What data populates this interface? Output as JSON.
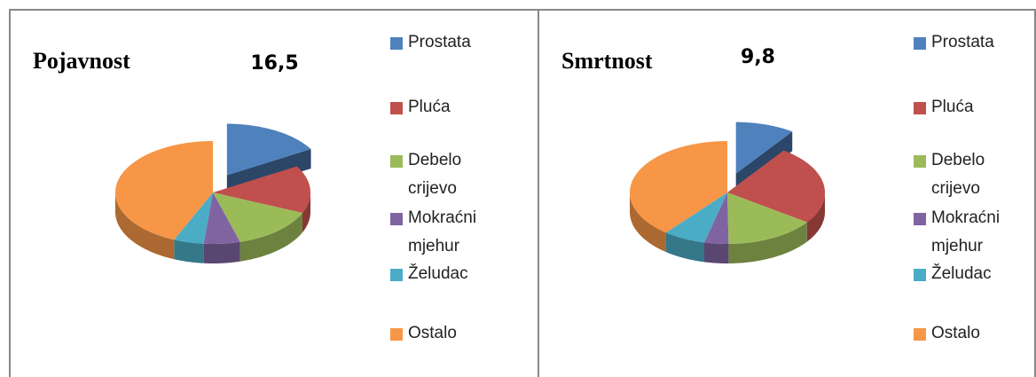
{
  "chart_data": [
    {
      "type": "pie",
      "title": "Pojavnost",
      "categories": [
        "Prostata",
        "Pluća",
        "Debelo crijevo",
        "Mokraćni mjehur",
        "Želudac",
        "Ostalo"
      ],
      "values": [
        16.5,
        15,
        14,
        6,
        5,
        43.5
      ],
      "value_labels": [
        "16,5",
        null,
        null,
        null,
        null,
        null
      ],
      "colors": [
        "#4f81bd",
        "#c0504d",
        "#9bbb59",
        "#8064a2",
        "#4bacc6",
        "#f79646"
      ],
      "explode": [
        true,
        false,
        false,
        false,
        false,
        false
      ]
    },
    {
      "type": "pie",
      "title": "Smrtnost",
      "categories": [
        "Prostata",
        "Pluća",
        "Debelo crijevo",
        "Mokraćni mjehur",
        "Želudac",
        "Ostalo"
      ],
      "values": [
        9.8,
        25,
        15,
        4,
        7,
        39.2
      ],
      "value_labels": [
        "9,8",
        null,
        null,
        null,
        null,
        null
      ],
      "colors": [
        "#4f81bd",
        "#c0504d",
        "#9bbb59",
        "#8064a2",
        "#4bacc6",
        "#f79646"
      ],
      "explode": [
        true,
        false,
        false,
        false,
        false,
        false
      ]
    }
  ]
}
